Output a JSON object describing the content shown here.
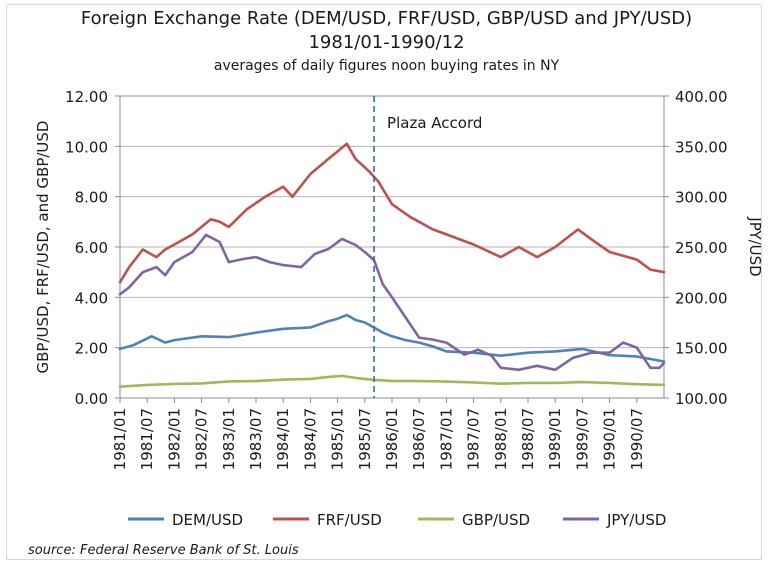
{
  "chart_data": {
    "type": "line",
    "title": "Foreign Exchange Rate (DEM/USD, FRF/USD,  GBP/USD and JPY/USD)",
    "subtitle": "1981/01-1990/12",
    "note": "averages of daily figures noon buying rates in NY",
    "ylabel": "GBP/USD, FRF/USD,  and GBP/USD",
    "y2label": "JPY/USD",
    "ylim": [
      0,
      12
    ],
    "y2lim": [
      100,
      400
    ],
    "yticks": [
      "0.00",
      "2.00",
      "4.00",
      "6.00",
      "8.00",
      "10.00",
      "12.00"
    ],
    "y2ticks": [
      "100.00",
      "150.00",
      "200.00",
      "250.00",
      "300.00",
      "350.00",
      "400.00"
    ],
    "xlim": [
      1981.0,
      1991.0
    ],
    "x_tick_labels": [
      "1981/01",
      "1981/07",
      "1982/01",
      "1982/07",
      "1983/01",
      "1983/07",
      "1984/01",
      "1984/07",
      "1985/01",
      "1985/07",
      "1986/01",
      "1986/07",
      "1987/01",
      "1987/07",
      "1988/01",
      "1988/07",
      "1989/01",
      "1989/07",
      "1990/01",
      "1990/07"
    ],
    "annotation": {
      "label": "Plaza Accord",
      "x": 1985.67
    },
    "legend_position": "bottom",
    "series": [
      {
        "name": "DEM/USD",
        "axis": "left",
        "color": "#4f81bd",
        "x": [
          1981.0,
          1981.25,
          1981.58,
          1981.83,
          1982.0,
          1982.5,
          1983.0,
          1983.5,
          1984.0,
          1984.5,
          1984.83,
          1985.0,
          1985.17,
          1985.33,
          1985.5,
          1985.67,
          1985.83,
          1986.0,
          1986.25,
          1986.5,
          1986.75,
          1987.0,
          1987.5,
          1988.0,
          1988.5,
          1989.0,
          1989.5,
          1990.0,
          1990.5,
          1990.75,
          1991.0
        ],
        "values": [
          1.95,
          2.1,
          2.45,
          2.2,
          2.3,
          2.45,
          2.42,
          2.6,
          2.75,
          2.8,
          3.05,
          3.15,
          3.3,
          3.1,
          3.0,
          2.8,
          2.6,
          2.45,
          2.3,
          2.2,
          2.05,
          1.85,
          1.8,
          1.68,
          1.8,
          1.85,
          1.95,
          1.7,
          1.65,
          1.55,
          1.45
        ]
      },
      {
        "name": "FRF/USD",
        "axis": "left",
        "color": "#c0504d",
        "x": [
          1981.0,
          1981.17,
          1981.42,
          1981.67,
          1981.83,
          1982.0,
          1982.33,
          1982.67,
          1982.83,
          1983.0,
          1983.33,
          1983.67,
          1984.0,
          1984.17,
          1984.5,
          1984.83,
          1985.0,
          1985.17,
          1985.33,
          1985.58,
          1985.75,
          1986.0,
          1986.33,
          1986.75,
          1987.0,
          1987.5,
          1988.0,
          1988.33,
          1988.67,
          1989.0,
          1989.42,
          1989.67,
          1990.0,
          1990.5,
          1990.75,
          1991.0
        ],
        "values": [
          4.6,
          5.2,
          5.9,
          5.6,
          5.9,
          6.1,
          6.5,
          7.1,
          7.0,
          6.8,
          7.5,
          8.0,
          8.4,
          8.0,
          8.9,
          9.5,
          9.8,
          10.1,
          9.5,
          9.0,
          8.6,
          7.7,
          7.2,
          6.7,
          6.5,
          6.1,
          5.6,
          6.0,
          5.6,
          6.0,
          6.7,
          6.3,
          5.8,
          5.5,
          5.1,
          5.0
        ]
      },
      {
        "name": "GBP/USD",
        "axis": "left",
        "color": "#9bbb59",
        "x": [
          1981.0,
          1981.5,
          1982.0,
          1982.5,
          1983.0,
          1983.5,
          1984.0,
          1984.5,
          1984.83,
          1985.08,
          1985.33,
          1985.67,
          1986.0,
          1986.5,
          1987.0,
          1987.5,
          1988.0,
          1988.5,
          1989.0,
          1989.5,
          1990.0,
          1990.5,
          1991.0
        ],
        "values": [
          0.45,
          0.52,
          0.56,
          0.58,
          0.66,
          0.67,
          0.73,
          0.76,
          0.84,
          0.88,
          0.8,
          0.72,
          0.68,
          0.67,
          0.65,
          0.62,
          0.57,
          0.6,
          0.6,
          0.63,
          0.6,
          0.55,
          0.52
        ]
      },
      {
        "name": "JPY/USD",
        "axis": "right",
        "color": "#8064a2",
        "x": [
          1981.0,
          1981.17,
          1981.42,
          1981.67,
          1981.83,
          1982.0,
          1982.33,
          1982.58,
          1982.83,
          1983.0,
          1983.25,
          1983.5,
          1983.75,
          1984.0,
          1984.33,
          1984.58,
          1984.83,
          1985.08,
          1985.33,
          1985.5,
          1985.67,
          1985.83,
          1986.0,
          1986.25,
          1986.5,
          1986.75,
          1987.0,
          1987.33,
          1987.58,
          1987.83,
          1988.0,
          1988.33,
          1988.67,
          1989.0,
          1989.33,
          1989.67,
          1990.0,
          1990.25,
          1990.5,
          1990.75,
          1990.92,
          1991.0
        ],
        "values": [
          203,
          210,
          225,
          230,
          222,
          235,
          245,
          262,
          255,
          235,
          238,
          240,
          235,
          232,
          230,
          243,
          248,
          258,
          252,
          245,
          237,
          213,
          200,
          180,
          160,
          158,
          155,
          143,
          148,
          142,
          130,
          128,
          132,
          128,
          140,
          145,
          145,
          155,
          150,
          130,
          130,
          135
        ]
      }
    ],
    "legend": [
      {
        "name": "DEM/USD",
        "color": "#4f81bd"
      },
      {
        "name": "FRF/USD",
        "color": "#c0504d"
      },
      {
        "name": "GBP/USD",
        "color": "#9bbb59"
      },
      {
        "name": "JPY/USD",
        "color": "#8064a2"
      }
    ]
  },
  "source": "source: Federal Reserve Bank of St. Louis"
}
